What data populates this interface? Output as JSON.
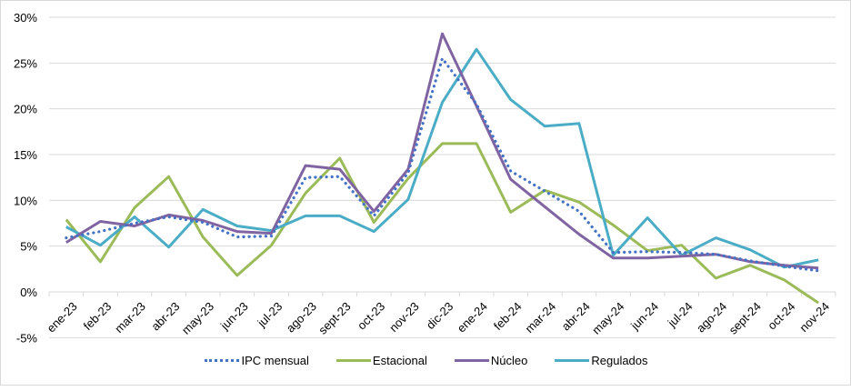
{
  "chart_data": {
    "type": "line",
    "title": "",
    "xlabel": "",
    "ylabel": "",
    "ylim": [
      -5,
      30
    ],
    "yticks": [
      -5,
      0,
      5,
      10,
      15,
      20,
      25,
      30
    ],
    "ytick_labels": [
      "-5%",
      "0%",
      "5%",
      "10%",
      "15%",
      "20%",
      "25%",
      "30%"
    ],
    "grid": true,
    "legend_position": "bottom",
    "categories": [
      "ene-23",
      "feb-23",
      "mar-23",
      "abr-23",
      "may-23",
      "jun-23",
      "jul-23",
      "ago-23",
      "sept-23",
      "oct-23",
      "nov-23",
      "dic-23",
      "ene-24",
      "feb-24",
      "mar-24",
      "abr-24",
      "may-24",
      "jun-24",
      "jul-24",
      "ago-24",
      "sept-24",
      "oct-24",
      "nov-24"
    ],
    "series": [
      {
        "name": "IPC mensual",
        "color": "#4472c4",
        "style": "dotted",
        "values": [
          5.9,
          6.6,
          7.5,
          8.2,
          7.6,
          6.0,
          6.1,
          12.5,
          12.6,
          8.3,
          13.0,
          25.5,
          20.5,
          13.2,
          11.0,
          8.8,
          4.3,
          4.4,
          4.3,
          4.1,
          3.4,
          2.8,
          2.3
        ]
      },
      {
        "name": "Estacional",
        "color": "#9bbb59",
        "style": "solid",
        "values": [
          7.9,
          3.3,
          9.2,
          12.6,
          6.0,
          1.8,
          5.1,
          10.8,
          14.6,
          7.6,
          12.4,
          16.2,
          16.2,
          8.7,
          11.1,
          9.8,
          7.3,
          4.5,
          5.1,
          1.5,
          2.9,
          1.3,
          -1.2
        ]
      },
      {
        "name": "Núcleo",
        "color": "#8064a2",
        "style": "solid",
        "values": [
          5.4,
          7.7,
          7.2,
          8.4,
          7.8,
          6.6,
          6.4,
          13.8,
          13.4,
          8.8,
          13.4,
          28.2,
          20.3,
          12.3,
          9.3,
          6.3,
          3.7,
          3.7,
          3.9,
          4.1,
          3.3,
          2.9,
          2.6
        ]
      },
      {
        "name": "Regulados",
        "color": "#4bacc6",
        "style": "solid",
        "values": [
          7.1,
          5.1,
          8.2,
          4.9,
          9.0,
          7.2,
          6.7,
          8.3,
          8.3,
          6.6,
          10.1,
          20.7,
          26.5,
          21.0,
          18.1,
          18.4,
          4.0,
          8.1,
          4.0,
          5.9,
          4.6,
          2.7,
          3.5
        ]
      }
    ]
  }
}
